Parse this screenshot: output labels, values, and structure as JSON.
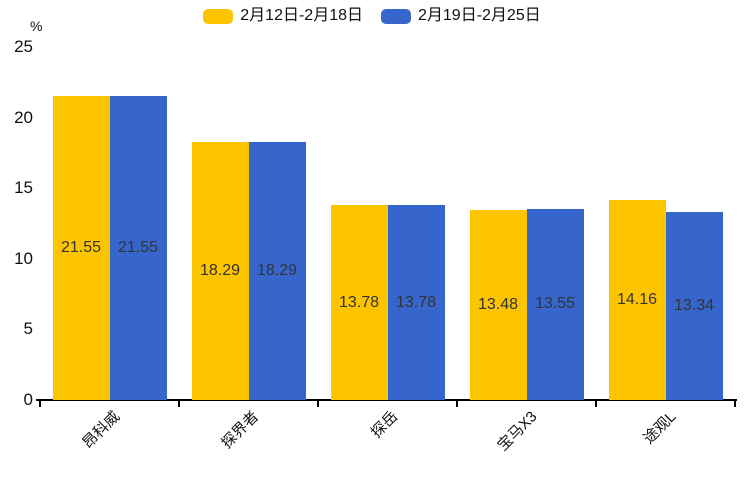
{
  "chart_data": {
    "type": "bar",
    "title": "",
    "categories": [
      "昂科威",
      "探界者",
      "探岳",
      "宝马X3",
      "途观L"
    ],
    "series": [
      {
        "name": "2月12日-2月18日",
        "color": "#FDC500",
        "values": [
          21.55,
          18.29,
          13.78,
          13.48,
          14.16
        ]
      },
      {
        "name": "2月19日-2月25日",
        "color": "#3666CC",
        "values": [
          21.55,
          18.29,
          13.78,
          13.55,
          13.34
        ]
      }
    ],
    "ylabel": "%",
    "ylim": [
      0,
      25
    ],
    "yticks": [
      0,
      5,
      10,
      15,
      20,
      25
    ],
    "grid": false,
    "legend_position": "top-center",
    "value_labels": "centered-inside-bars",
    "value_label_color": "#333333",
    "axis_color": "#000000",
    "background_color": "#ffffff"
  }
}
